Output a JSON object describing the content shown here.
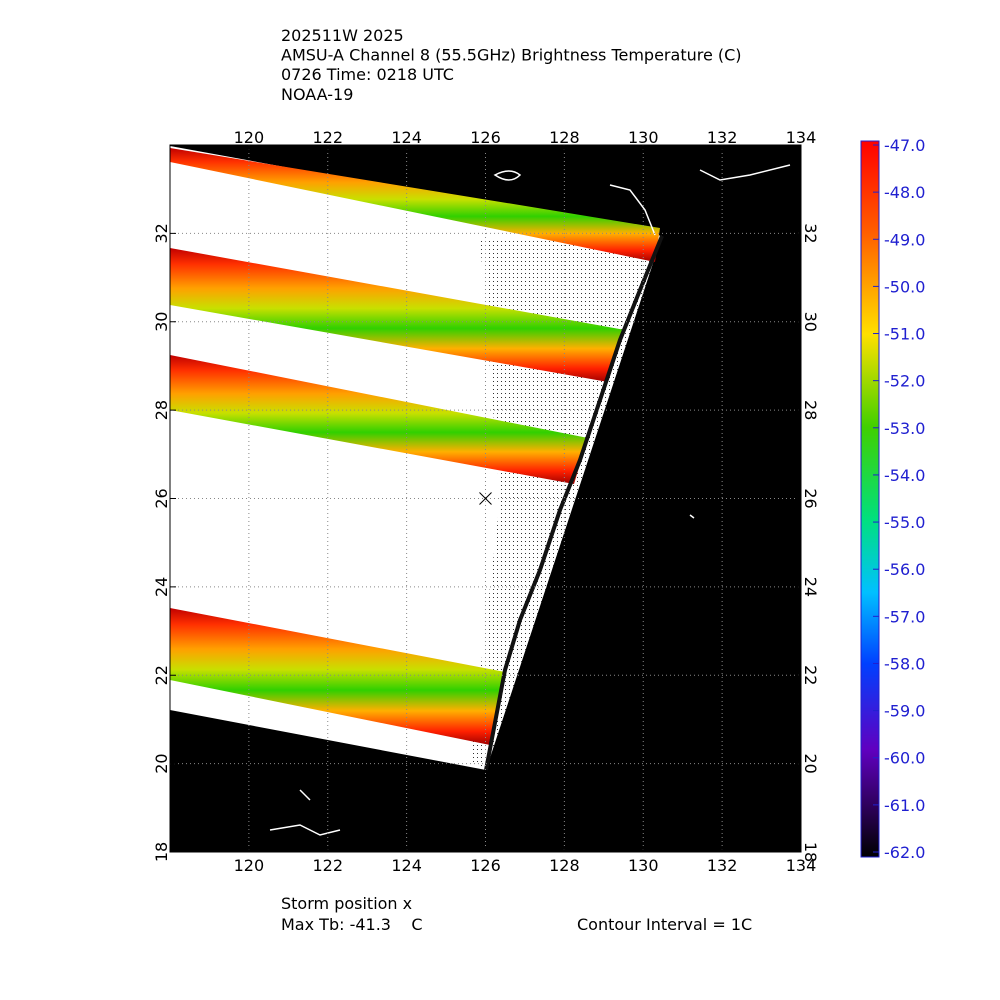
{
  "title_lines": [
    "202511W 2025",
    "AMSU-A Channel 8 (55.5GHz) Brightness Temperature (C)",
    "0726 Time: 0218 UTC",
    "NOAA-19"
  ],
  "map": {
    "xlim": [
      118,
      134
    ],
    "xticks": [
      120,
      122,
      124,
      126,
      128,
      130,
      132,
      134
    ],
    "ylim": [
      18,
      34
    ],
    "yticks": [
      18,
      20,
      22,
      24,
      26,
      28,
      30,
      32
    ],
    "grid": true,
    "storm_position": {
      "lon": 126,
      "lat": 26
    }
  },
  "colorbar": {
    "lim": [
      -62,
      -47
    ],
    "ticks": [
      {
        "value": -47,
        "label": "-47.0"
      },
      {
        "value": -48,
        "label": "-48.0"
      },
      {
        "value": -49,
        "label": "-49.0"
      },
      {
        "value": -50,
        "label": "-50.0"
      },
      {
        "value": -51,
        "label": "-51.0"
      },
      {
        "value": -52,
        "label": "-52.0"
      },
      {
        "value": -53,
        "label": "-53.0"
      },
      {
        "value": -54,
        "label": "-54.0"
      },
      {
        "value": -55,
        "label": "-55.0"
      },
      {
        "value": -56,
        "label": "-56.0"
      },
      {
        "value": -57,
        "label": "-57.0"
      },
      {
        "value": -58,
        "label": "-58.0"
      },
      {
        "value": -59,
        "label": "-59.0"
      },
      {
        "value": -60,
        "label": "-60.0"
      },
      {
        "value": -61,
        "label": "-61.0"
      },
      {
        "value": -62,
        "label": "-62.0"
      }
    ]
  },
  "footer": {
    "storm_label": "Storm position x",
    "max_tb": "Max Tb: -41.3    C",
    "contour_interval": "Contour Interval = 1C"
  }
}
